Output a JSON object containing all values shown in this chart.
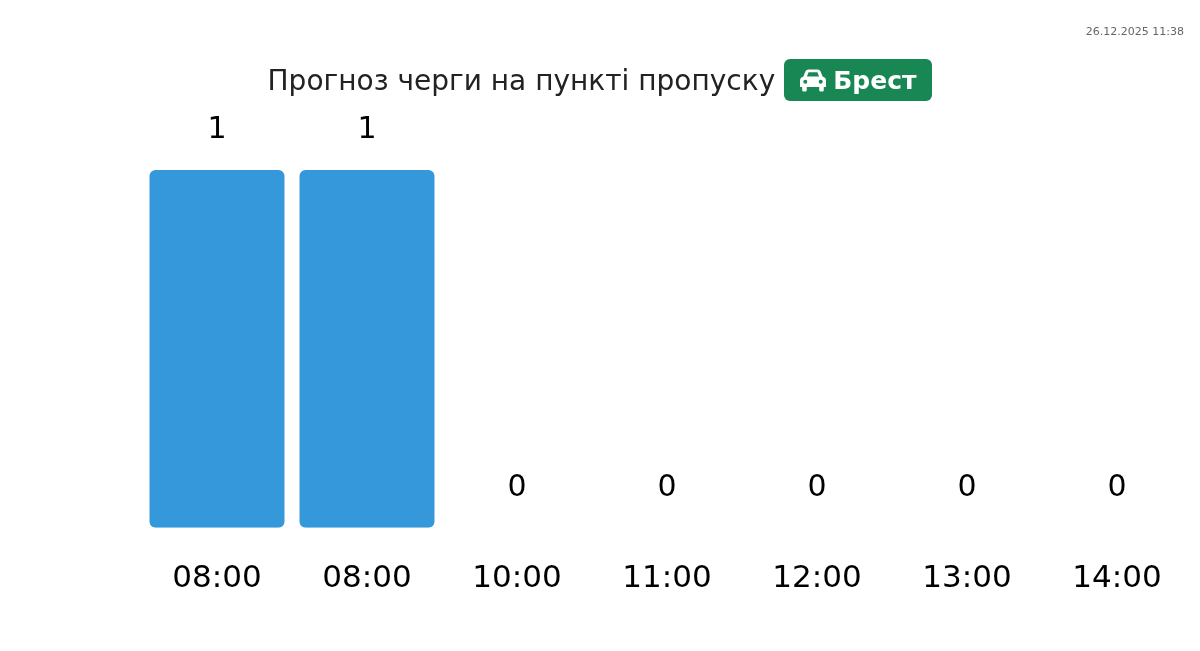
{
  "chart_data": {
    "type": "bar",
    "title": "Прогноз черги на пункті пропуску",
    "subtitle": "Брест",
    "annotations": [
      "26.12.2025 11:38"
    ],
    "categories": [
      "08:00",
      "08:00",
      "10:00",
      "11:00",
      "12:00",
      "13:00",
      "14:00"
    ],
    "values": [
      1,
      1,
      0,
      0,
      0,
      0,
      0
    ],
    "color": "#3498db",
    "data_labels": true
  }
}
